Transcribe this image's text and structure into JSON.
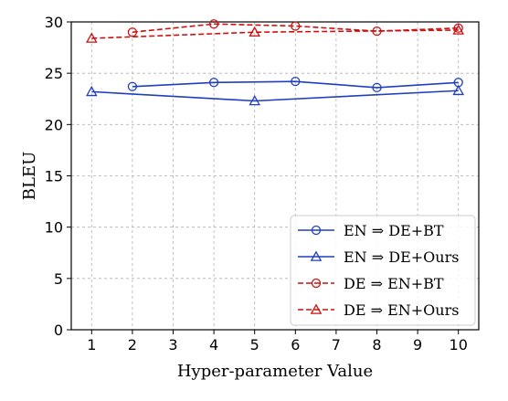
{
  "chart_data": {
    "type": "line",
    "title": "",
    "xlabel": "Hyper-parameter Value",
    "ylabel": "BLEU",
    "xlim": [
      0.5,
      10.5
    ],
    "ylim": [
      0,
      30
    ],
    "xticks": [
      1,
      2,
      3,
      4,
      5,
      6,
      7,
      8,
      9,
      10
    ],
    "yticks": [
      0,
      5,
      10,
      15,
      20,
      25,
      30
    ],
    "grid": true,
    "legend_position": "bottom-right",
    "series": [
      {
        "name": "EN ⇒ DE+BT",
        "color": "#1f3fbf",
        "line_style": "solid",
        "marker": "circle",
        "x": [
          2,
          4,
          6,
          8,
          10
        ],
        "y": [
          23.7,
          24.1,
          24.2,
          23.6,
          24.1
        ]
      },
      {
        "name": "EN ⇒ DE+Ours",
        "color": "#1f3fbf",
        "line_style": "solid",
        "marker": "triangle",
        "x": [
          1,
          5,
          10
        ],
        "y": [
          23.2,
          22.3,
          23.3
        ]
      },
      {
        "name": "DE ⇒ EN+BT",
        "color": "#cc1111",
        "line_style": "dashed",
        "marker": "circle",
        "x": [
          2,
          4,
          6,
          8,
          10
        ],
        "y": [
          29.0,
          29.8,
          29.6,
          29.1,
          29.4
        ]
      },
      {
        "name": "DE ⇒ EN+Ours",
        "color": "#cc1111",
        "line_style": "dashed",
        "marker": "triangle",
        "x": [
          1,
          5,
          10
        ],
        "y": [
          28.4,
          29.0,
          29.2
        ]
      }
    ]
  }
}
